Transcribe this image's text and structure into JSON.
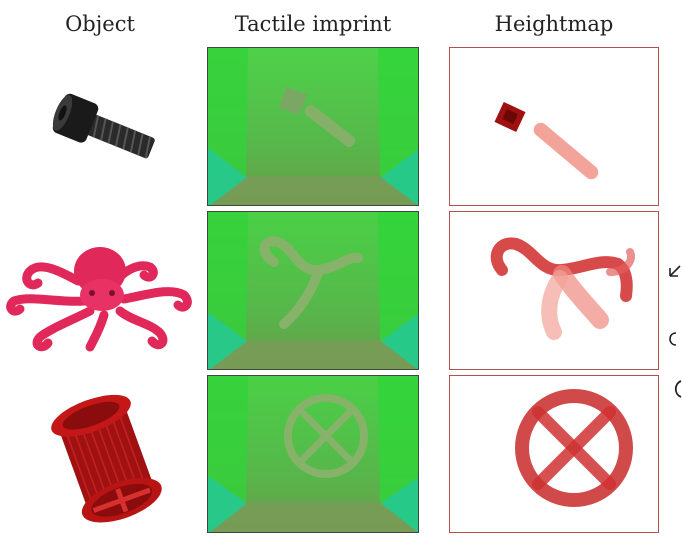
{
  "headers": {
    "object": "Object",
    "tactile": "Tactile imprint",
    "heightmap": "Heightmap"
  },
  "rows": [
    {
      "object": "bolt-screw",
      "imprint": "bolt imprint",
      "heightmap": "bolt heightmap"
    },
    {
      "object": "octopus",
      "imprint": "octopus tentacle imprint",
      "heightmap": "octopus heightmap"
    },
    {
      "object": "spool",
      "imprint": "circle-with-cross imprint",
      "heightmap": "circle-with-cross heightmap"
    }
  ],
  "colors": {
    "gel_green": "#3ec43a",
    "heightmap_red": "#c81e1e",
    "octopus_pink": "#e0285a",
    "spool_red": "#b41414",
    "bolt_black": "#1a1a1a"
  }
}
